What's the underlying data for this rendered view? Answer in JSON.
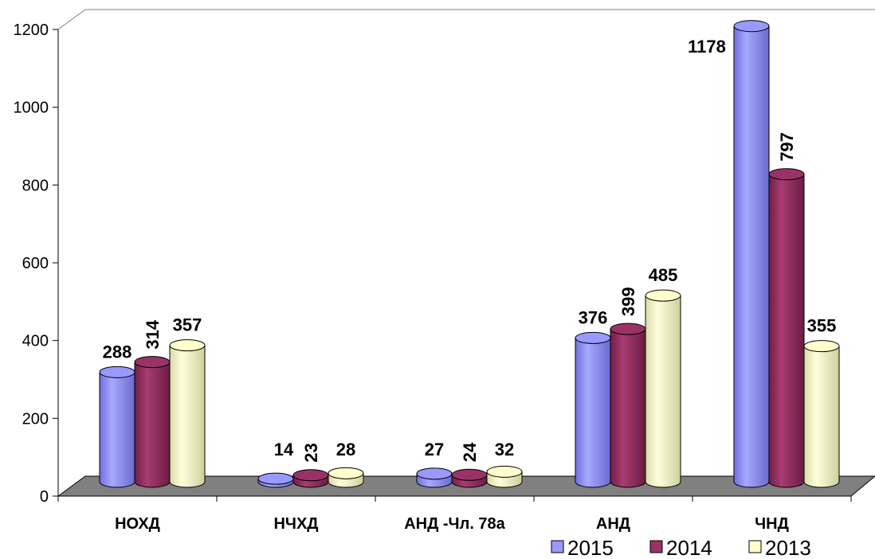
{
  "chart_data": {
    "type": "bar",
    "categories": [
      "НОХД",
      "НЧХД",
      "АНД -Чл. 78а",
      "АНД",
      "ЧНД"
    ],
    "series": [
      {
        "name": "2015",
        "values": [
          288,
          14,
          27,
          376,
          1178
        ],
        "color": "#9999ff"
      },
      {
        "name": "2014",
        "values": [
          314,
          23,
          24,
          399,
          797
        ],
        "color": "#993366"
      },
      {
        "name": "2013",
        "values": [
          357,
          28,
          32,
          485,
          355
        ],
        "color": "#ffffcc"
      }
    ],
    "value_labels": [
      [
        "288",
        "14",
        "27",
        "376",
        "1178"
      ],
      [
        "314",
        "23",
        "24",
        "399",
        "797"
      ],
      [
        "357",
        "28",
        "32",
        "485",
        "355"
      ]
    ],
    "yticks": [
      "0",
      "200",
      "400",
      "600",
      "800",
      "1000",
      "1200"
    ],
    "ylim": [
      0,
      1200
    ],
    "grid": false,
    "legend_position": "bottom-right",
    "style": "3d-cylinder"
  }
}
